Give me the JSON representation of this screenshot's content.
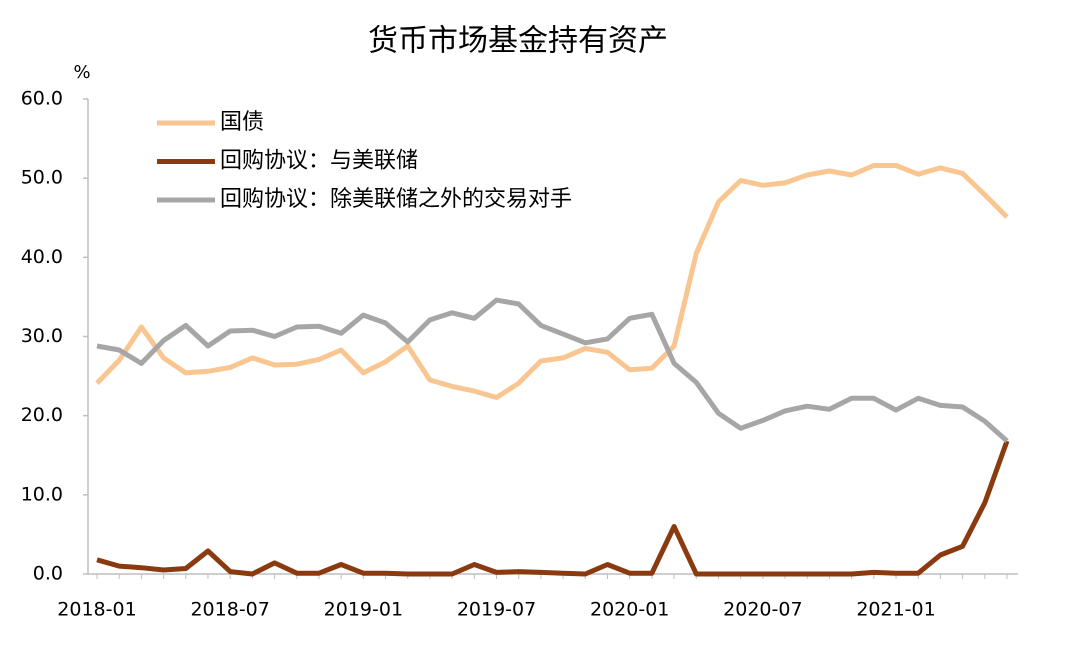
{
  "chart_data": {
    "type": "line",
    "title": "货币市场基金持有资产",
    "y_unit": "%",
    "categories": [
      "2018-01",
      null,
      null,
      null,
      null,
      null,
      "2018-07",
      null,
      null,
      null,
      null,
      null,
      "2019-01",
      null,
      null,
      null,
      null,
      null,
      "2019-07",
      null,
      null,
      null,
      null,
      null,
      "2020-01",
      null,
      null,
      null,
      null,
      null,
      "2020-07",
      null,
      null,
      null,
      null,
      null,
      "2021-01",
      null,
      null,
      null,
      null,
      null
    ],
    "series": [
      {
        "name": "国债",
        "color": "#f9c691",
        "values": [
          24.1,
          27.0,
          31.2,
          27.3,
          25.4,
          25.6,
          26.1,
          27.3,
          26.4,
          26.5,
          27.1,
          28.3,
          25.4,
          26.8,
          28.8,
          24.5,
          23.7,
          23.1,
          22.3,
          24.1,
          26.9,
          27.3,
          28.5,
          28.0,
          25.8,
          26.0,
          28.8,
          40.5,
          47.0,
          49.7,
          49.1,
          49.4,
          50.4,
          50.9,
          50.4,
          51.6,
          51.6,
          50.5,
          51.3,
          50.6,
          47.9,
          45.1
        ]
      },
      {
        "name": "回购协议：与美联储",
        "color": "#8b3a10",
        "values": [
          1.8,
          1.0,
          0.8,
          0.5,
          0.7,
          2.9,
          0.3,
          0.0,
          1.4,
          0.1,
          0.1,
          1.2,
          0.1,
          0.1,
          0.0,
          0.0,
          0.0,
          1.2,
          0.2,
          0.3,
          0.2,
          0.1,
          0.0,
          1.2,
          0.1,
          0.1,
          6.0,
          0.0,
          0.0,
          0.0,
          0.0,
          0.0,
          0.0,
          0.0,
          0.0,
          0.2,
          0.1,
          0.1,
          2.4,
          3.5,
          9.0,
          16.8
        ]
      },
      {
        "name": "回购协议：除美联储之外的交易对手",
        "color": "#a6a6a6",
        "values": [
          28.8,
          28.3,
          26.6,
          29.5,
          31.4,
          28.8,
          30.7,
          30.8,
          30.0,
          31.2,
          31.3,
          30.4,
          32.7,
          31.7,
          29.3,
          32.1,
          33.0,
          32.3,
          34.6,
          34.1,
          31.4,
          30.3,
          29.2,
          29.7,
          32.3,
          32.8,
          26.6,
          24.2,
          20.3,
          18.4,
          19.4,
          20.6,
          21.2,
          20.8,
          22.2,
          22.2,
          20.7,
          22.2,
          21.3,
          21.1,
          19.3,
          16.8
        ]
      }
    ],
    "ylim": [
      0,
      60
    ],
    "yticks": [
      {
        "value": 0,
        "label": "0.0"
      },
      {
        "value": 10,
        "label": "10.0"
      },
      {
        "value": 20,
        "label": "20.0"
      },
      {
        "value": 30,
        "label": "30.0"
      },
      {
        "value": 40,
        "label": "40.0"
      },
      {
        "value": 50,
        "label": "50.0"
      },
      {
        "value": 60,
        "label": "60.0"
      }
    ],
    "grid": false,
    "legend": "upper left"
  }
}
